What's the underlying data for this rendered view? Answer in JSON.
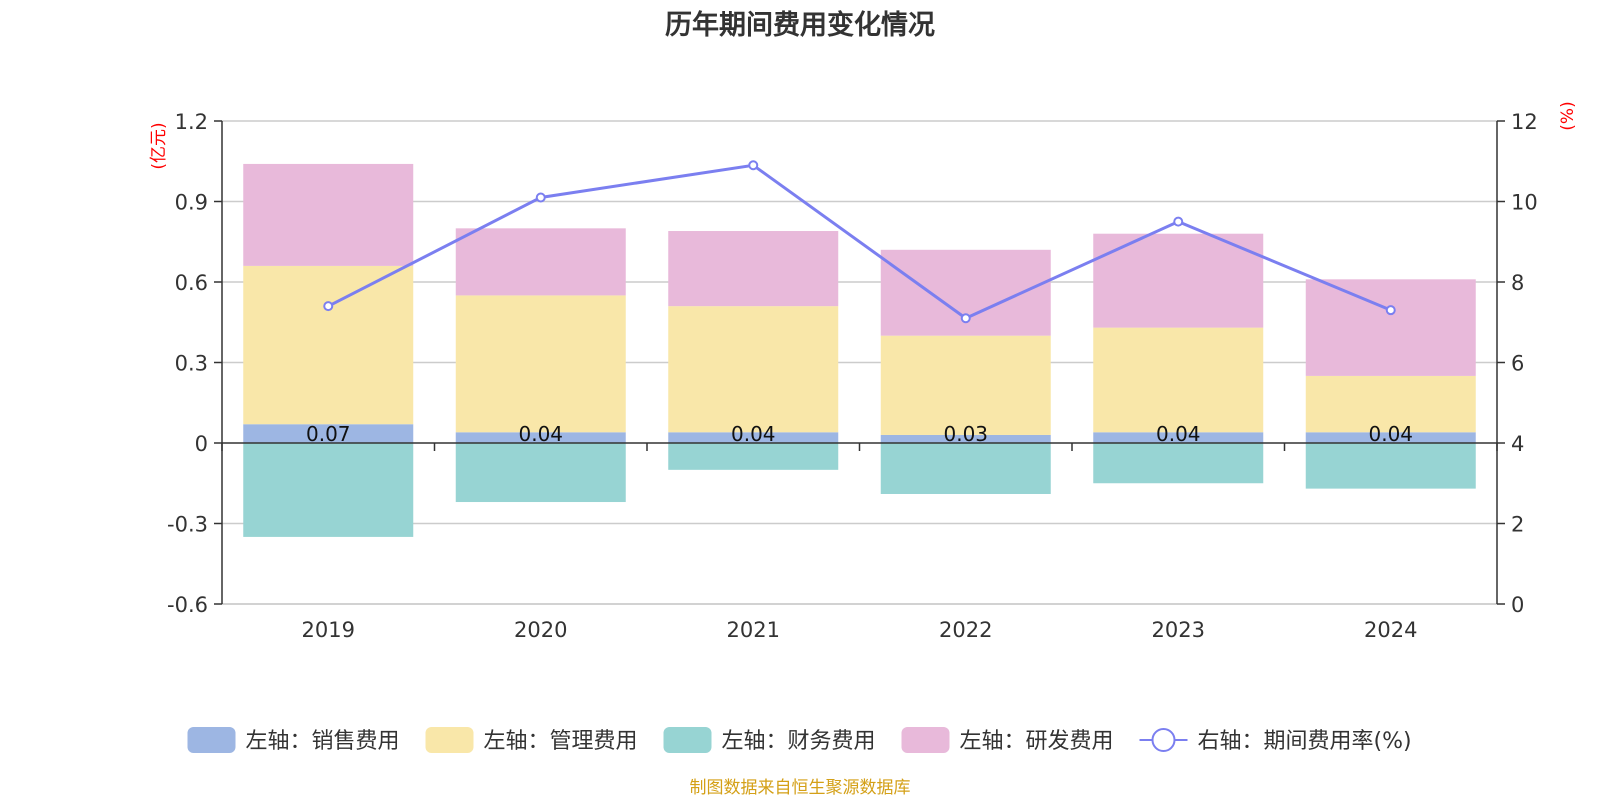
{
  "chart_data": {
    "type": "bar",
    "stacked": true,
    "title": "历年期间费用变化情况",
    "categories": [
      "2019",
      "2020",
      "2021",
      "2022",
      "2023",
      "2024"
    ],
    "left_axis": {
      "unit": "(亿元)",
      "ylim": [
        -0.6,
        1.2
      ],
      "ticks": [
        "1.2",
        "0.9",
        "0.6",
        "0.3",
        "0",
        "-0.3",
        "-0.6"
      ],
      "tick_values": [
        1.2,
        0.9,
        0.6,
        0.3,
        0,
        -0.3,
        -0.6
      ]
    },
    "right_axis": {
      "unit": "(%)",
      "ylim": [
        0,
        12
      ],
      "ticks": [
        "12",
        "10",
        "8",
        "6",
        "4",
        "2",
        "0"
      ],
      "tick_values": [
        12,
        10,
        8,
        6,
        4,
        2,
        0
      ]
    },
    "grid": true,
    "legend_position": "bottom",
    "series": [
      {
        "name": "左轴：销售费用",
        "axis": "left",
        "color": "#9db6e3",
        "values": [
          0.07,
          0.04,
          0.04,
          0.03,
          0.04,
          0.04
        ],
        "labels": [
          "0.07",
          "0.04",
          "0.04",
          "0.03",
          "0.04",
          "0.04"
        ]
      },
      {
        "name": "左轴：管理费用",
        "axis": "left",
        "color": "#f9e7a9",
        "values": [
          0.59,
          0.51,
          0.47,
          0.37,
          0.39,
          0.21
        ]
      },
      {
        "name": "左轴：财务费用",
        "axis": "left",
        "color": "#97d4d3",
        "values": [
          -0.35,
          -0.22,
          -0.1,
          -0.19,
          -0.15,
          -0.17
        ]
      },
      {
        "name": "左轴：研发费用",
        "axis": "left",
        "color": "#e8b9da",
        "values": [
          0.38,
          0.25,
          0.28,
          0.32,
          0.35,
          0.36
        ]
      },
      {
        "name": "右轴：期间费用率(%)",
        "axis": "right",
        "type": "line",
        "color": "#7b7ff0",
        "values": [
          7.4,
          10.1,
          10.9,
          7.1,
          9.5,
          7.3
        ]
      }
    ],
    "source": "制图数据来自恒生聚源数据库"
  }
}
